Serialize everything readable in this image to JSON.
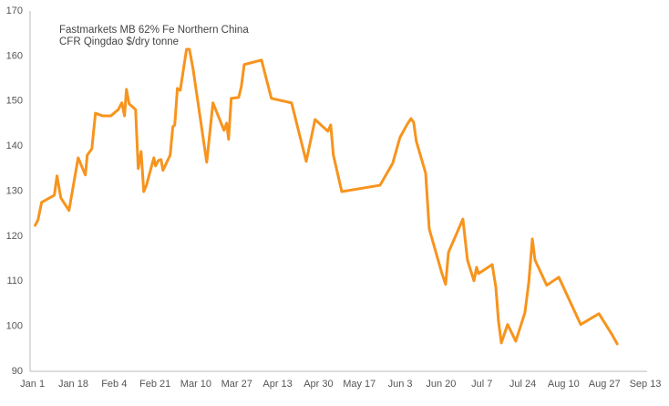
{
  "chart_data": {
    "type": "line",
    "title": "Fastmarkets MB 62% Fe Northern China",
    "subtitle": "CFR Qingdao $/dry tonne",
    "x": [
      1.1,
      2.3,
      3.8,
      9.1,
      10.2,
      11.8,
      15.2,
      19,
      22,
      22.8,
      24.7,
      26.2,
      29.2,
      32.6,
      35.7,
      37.2,
      38.3,
      39.1,
      40.2,
      42.9,
      44,
      45.2,
      46.3,
      47.4,
      50.5,
      51.2,
      52.4,
      53.5,
      54.3,
      57.3,
      58.4,
      59.2,
      60.3,
      61.5,
      64.1,
      65.3,
      66.8,
      72.5,
      75.1,
      79.7,
      80.8,
      81.6,
      82.7,
      85.8,
      86.9,
      88.1,
      95.3,
      99.4,
      107.8,
      113.9,
      117.6,
      122.9,
      124.1,
      125.2,
      128.7,
      144.6,
      149.9,
      152.9,
      156,
      157.5,
      158.6,
      159.7,
      163.6,
      165.1,
      170.4,
      171.9,
      173.1,
      179.1,
      181,
      183.7,
      184.8,
      185.6,
      191.3,
      192.8,
      193.9,
      195.1,
      197.7,
      201.1,
      204.9,
      206.5,
      208,
      209.1,
      214,
      219,
      228.1,
      235.7,
      241,
      243.3
    ],
    "series": [
      {
        "color": "#f7941d",
        "values": [
          122.4,
          123.6,
          127.5,
          129.1,
          133.4,
          128.5,
          125.7,
          137.4,
          133.6,
          138,
          139.4,
          147.3,
          146.7,
          146.7,
          148.1,
          149.6,
          146.7,
          152.6,
          149.4,
          148.1,
          135,
          138.8,
          129.9,
          131.3,
          137.4,
          135.6,
          136.8,
          137,
          134.6,
          138,
          144.3,
          144.7,
          152.8,
          152.4,
          161.5,
          161.5,
          157.2,
          136.4,
          149.6,
          143.5,
          145.1,
          141.5,
          150.6,
          150.8,
          153.2,
          158.1,
          159.1,
          150.6,
          149.6,
          136.6,
          145.9,
          143.3,
          144.7,
          138,
          129.9,
          131.3,
          136.2,
          141.9,
          144.9,
          146.1,
          145.3,
          141.1,
          134,
          121.6,
          111.7,
          109.3,
          116.4,
          123.8,
          114.7,
          110.1,
          113.1,
          111.7,
          113.7,
          108.7,
          101.2,
          96.3,
          100.4,
          96.7,
          103,
          109.7,
          119.4,
          114.7,
          109.1,
          110.9,
          100.4,
          102.8,
          98.3,
          96.1
        ]
      }
    ],
    "xlim": [
      -1,
      255
    ],
    "xticks": [
      {
        "value": 0,
        "label": "Jan 1"
      },
      {
        "value": 17,
        "label": "Jan 18"
      },
      {
        "value": 34,
        "label": "Feb 4"
      },
      {
        "value": 51,
        "label": "Feb 21"
      },
      {
        "value": 68,
        "label": "Mar 10"
      },
      {
        "value": 85,
        "label": "Mar 27"
      },
      {
        "value": 102,
        "label": "Apr 13"
      },
      {
        "value": 119,
        "label": "Apr 30"
      },
      {
        "value": 136,
        "label": "May 17"
      },
      {
        "value": 153,
        "label": "Jun 3"
      },
      {
        "value": 170,
        "label": "Jun 20"
      },
      {
        "value": 187,
        "label": "Jul 7"
      },
      {
        "value": 204,
        "label": "Jul 24"
      },
      {
        "value": 221,
        "label": "Aug 10"
      },
      {
        "value": 238,
        "label": "Aug 27"
      },
      {
        "value": 255,
        "label": "Sep 13"
      }
    ],
    "ylim": [
      90,
      170
    ],
    "yticks": [
      90,
      100,
      110,
      120,
      130,
      140,
      150,
      160,
      170
    ],
    "grid": false
  }
}
